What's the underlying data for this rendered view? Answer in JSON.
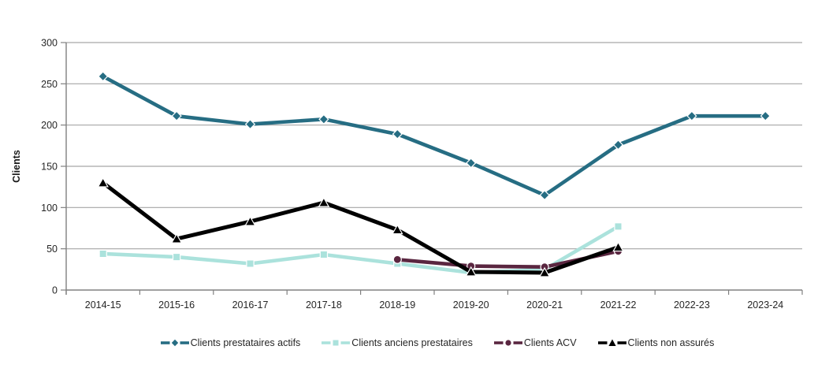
{
  "chart_data": {
    "type": "line",
    "title": "",
    "xlabel": "",
    "ylabel": "Clients",
    "ylim": [
      0,
      300
    ],
    "yticks": [
      0,
      50,
      100,
      150,
      200,
      250,
      300
    ],
    "grid": "horizontal",
    "legend_position": "bottom",
    "categories": [
      "2014-15",
      "2015-16",
      "2016-17",
      "2017-18",
      "2018-19",
      "2019-20",
      "2020-21",
      "2021-22",
      "2022-23",
      "2023-24"
    ],
    "series": [
      {
        "name": "Clients prestataires actifs",
        "color": "#266D83",
        "marker": "diamond",
        "z": 3,
        "values": [
          259,
          211,
          201,
          207,
          189,
          154,
          115,
          176,
          211,
          211
        ]
      },
      {
        "name": "Clients anciens prestataires",
        "color": "#ABE2DC",
        "marker": "square",
        "z": 0,
        "values": [
          44,
          40,
          32,
          43,
          32,
          21,
          25,
          77,
          null,
          null
        ]
      },
      {
        "name": "Clients ACV",
        "color": "#5A2640",
        "marker": "circle",
        "z": 1,
        "values": [
          null,
          null,
          null,
          null,
          37,
          29,
          28,
          47,
          null,
          null
        ]
      },
      {
        "name": "Clients non assurés",
        "color": "#000000",
        "marker": "triangle",
        "z": 2,
        "values": [
          130,
          62,
          83,
          106,
          73,
          22,
          21,
          52,
          null,
          null
        ]
      }
    ]
  },
  "colors": {
    "gridline": "#A6A6A6",
    "axis": "#808080",
    "text": "#262626",
    "background": "#FFFFFF"
  }
}
